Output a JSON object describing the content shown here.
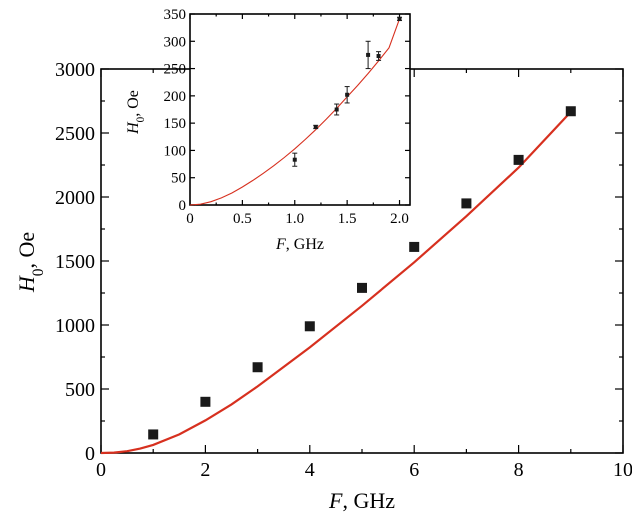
{
  "chart_data": [
    {
      "id": "main",
      "type": "scatter",
      "title": "",
      "xlabel": {
        "var": "F",
        "unit": ", GHz"
      },
      "ylabel": {
        "var": "H",
        "sub": "0",
        "unit": ", Oe"
      },
      "xlim": [
        0,
        10
      ],
      "ylim": [
        0,
        3000
      ],
      "xticks": [
        0,
        2,
        4,
        6,
        8,
        10
      ],
      "yticks": [
        0,
        500,
        1000,
        1500,
        2000,
        2500,
        3000
      ],
      "grid": false,
      "series": [
        {
          "kind": "points",
          "marker": "square",
          "color": "#1a1a1a",
          "x": [
            1,
            2,
            3,
            4,
            5,
            6,
            7,
            8,
            9
          ],
          "y": [
            145,
            400,
            670,
            990,
            1290,
            1610,
            1950,
            2290,
            2670
          ]
        },
        {
          "kind": "fit-curve",
          "color": "#d7301f",
          "x": [
            0,
            0.25,
            0.5,
            0.75,
            1,
            1.5,
            2,
            2.5,
            3,
            4,
            5,
            6,
            7,
            8,
            9
          ],
          "y": [
            0,
            3,
            14,
            34,
            63,
            145,
            255,
            380,
            520,
            825,
            1150,
            1490,
            1850,
            2230,
            2665
          ]
        }
      ]
    },
    {
      "id": "inset",
      "type": "scatter",
      "title": "",
      "xlabel": {
        "var": "F",
        "unit": ", GHz"
      },
      "ylabel": {
        "var": "H",
        "sub": "0",
        "unit": ", Oe"
      },
      "xlim": [
        0,
        2.1
      ],
      "ylim": [
        0,
        350
      ],
      "xticks": [
        "0",
        "0.5",
        "1.0",
        "1.5",
        "2.0"
      ],
      "yticks": [
        0,
        50,
        100,
        150,
        200,
        250,
        300,
        350
      ],
      "grid": false,
      "series": [
        {
          "kind": "points-with-errors",
          "marker": "square",
          "color": "#1a1a1a",
          "x": [
            1.0,
            1.2,
            1.4,
            1.5,
            1.7,
            1.8,
            2.0
          ],
          "y": [
            83,
            143,
            175,
            202,
            275,
            273,
            341
          ],
          "err": [
            12,
            3,
            10,
            15,
            25,
            8,
            3
          ]
        },
        {
          "kind": "fit-curve",
          "color": "#d7301f",
          "x": [
            0,
            0.1,
            0.2,
            0.3,
            0.4,
            0.5,
            0.6,
            0.7,
            0.8,
            0.9,
            1.0,
            1.1,
            1.2,
            1.3,
            1.4,
            1.5,
            1.6,
            1.7,
            1.8,
            1.9,
            2.0
          ],
          "y": [
            0,
            1.5,
            6,
            13,
            22,
            33,
            45,
            58,
            72,
            87,
            103,
            120,
            138,
            157,
            177,
            198,
            219,
            241,
            264,
            288,
            341
          ]
        }
      ]
    }
  ]
}
